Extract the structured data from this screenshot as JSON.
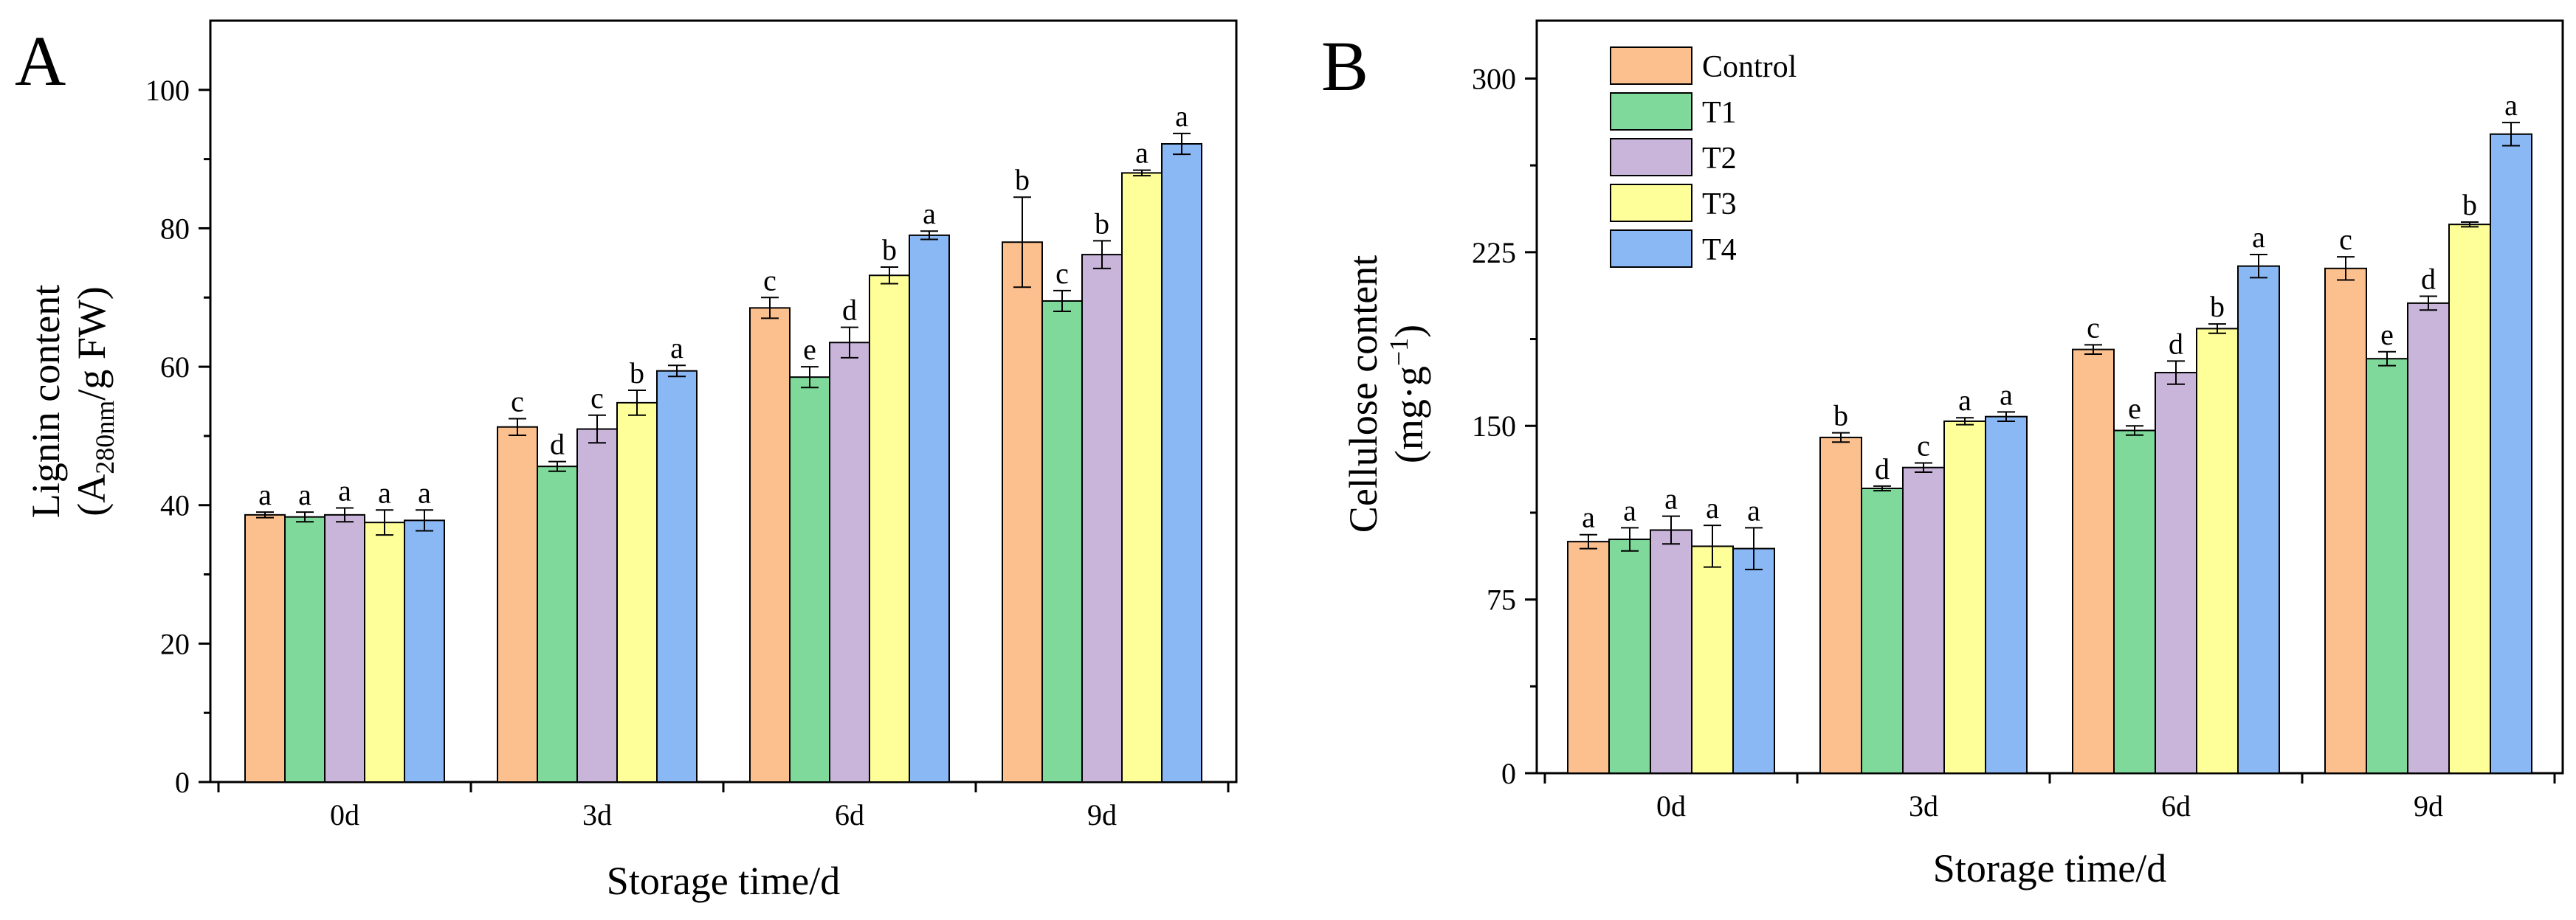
{
  "figure": {
    "panels": [
      "A",
      "B"
    ]
  },
  "chart_data": [
    {
      "panel": "A",
      "type": "bar",
      "xlabel": "Storage time/d",
      "ylabel_line1": "Lignin content",
      "ylabel_line2_prefix": "(A",
      "ylabel_line2_sub": "280nm",
      "ylabel_line2_suffix": "/g FW)",
      "ylim": [
        0,
        110
      ],
      "yticks": [
        0,
        20,
        40,
        60,
        80,
        100
      ],
      "categories": [
        "0d",
        "3d",
        "6d",
        "9d"
      ],
      "series": [
        {
          "name": "Control",
          "color": "#FCC08E",
          "values": [
            38.6,
            51.3,
            68.5,
            78.0
          ],
          "errors": [
            0.4,
            1.2,
            1.5,
            6.5
          ],
          "letters": [
            "a",
            "c",
            "c",
            "b"
          ]
        },
        {
          "name": "T1",
          "color": "#7FD99A",
          "values": [
            38.3,
            45.6,
            58.5,
            69.5
          ],
          "errors": [
            0.7,
            0.7,
            1.5,
            1.5
          ],
          "letters": [
            "a",
            "d",
            "e",
            "c"
          ]
        },
        {
          "name": "T2",
          "color": "#C9B4DA",
          "values": [
            38.6,
            51.0,
            63.5,
            76.2
          ],
          "errors": [
            1.0,
            2.0,
            2.2,
            2.0
          ],
          "letters": [
            "a",
            "c",
            "d",
            "b"
          ]
        },
        {
          "name": "T3",
          "color": "#FFFF99",
          "values": [
            37.5,
            54.8,
            73.2,
            88.0
          ],
          "errors": [
            1.8,
            1.8,
            1.2,
            0.4
          ],
          "letters": [
            "a",
            "b",
            "b",
            "a"
          ]
        },
        {
          "name": "T4",
          "color": "#8AB8F5",
          "values": [
            37.8,
            59.4,
            79.0,
            92.2
          ],
          "errors": [
            1.5,
            0.8,
            0.6,
            1.5
          ],
          "letters": [
            "a",
            "a",
            "a",
            "a"
          ]
        }
      ]
    },
    {
      "panel": "B",
      "type": "bar",
      "xlabel": "Storage time/d",
      "ylabel_line1": "Cellulose content",
      "ylabel_line2_prefix": "(mg·g",
      "ylabel_line2_sup": "−1",
      "ylabel_line2_suffix": ")",
      "ylim": [
        0,
        325
      ],
      "yticks": [
        0,
        75,
        150,
        225,
        300
      ],
      "categories": [
        "0d",
        "3d",
        "6d",
        "9d"
      ],
      "legend_position": "top-left",
      "series": [
        {
          "name": "Control",
          "color": "#FCC08E",
          "values": [
            100,
            145,
            183,
            218
          ],
          "errors": [
            3,
            2,
            2,
            5
          ],
          "letters": [
            "a",
            "b",
            "c",
            "c"
          ]
        },
        {
          "name": "T1",
          "color": "#7FD99A",
          "values": [
            101,
            123,
            148,
            179
          ],
          "errors": [
            5,
            1,
            2,
            3
          ],
          "letters": [
            "a",
            "d",
            "e",
            "e"
          ]
        },
        {
          "name": "T2",
          "color": "#C9B4DA",
          "values": [
            105,
            132,
            173,
            203
          ],
          "errors": [
            6,
            2,
            5,
            3
          ],
          "letters": [
            "a",
            "c",
            "d",
            "d"
          ]
        },
        {
          "name": "T3",
          "color": "#FFFF99",
          "values": [
            98,
            152,
            192,
            237
          ],
          "errors": [
            9,
            1.5,
            2,
            1
          ],
          "letters": [
            "a",
            "a",
            "b",
            "b"
          ]
        },
        {
          "name": "T4",
          "color": "#8AB8F5",
          "values": [
            97,
            154,
            219,
            276
          ],
          "errors": [
            9,
            2,
            5,
            5
          ],
          "letters": [
            "a",
            "a",
            "a",
            "a"
          ]
        }
      ]
    }
  ]
}
